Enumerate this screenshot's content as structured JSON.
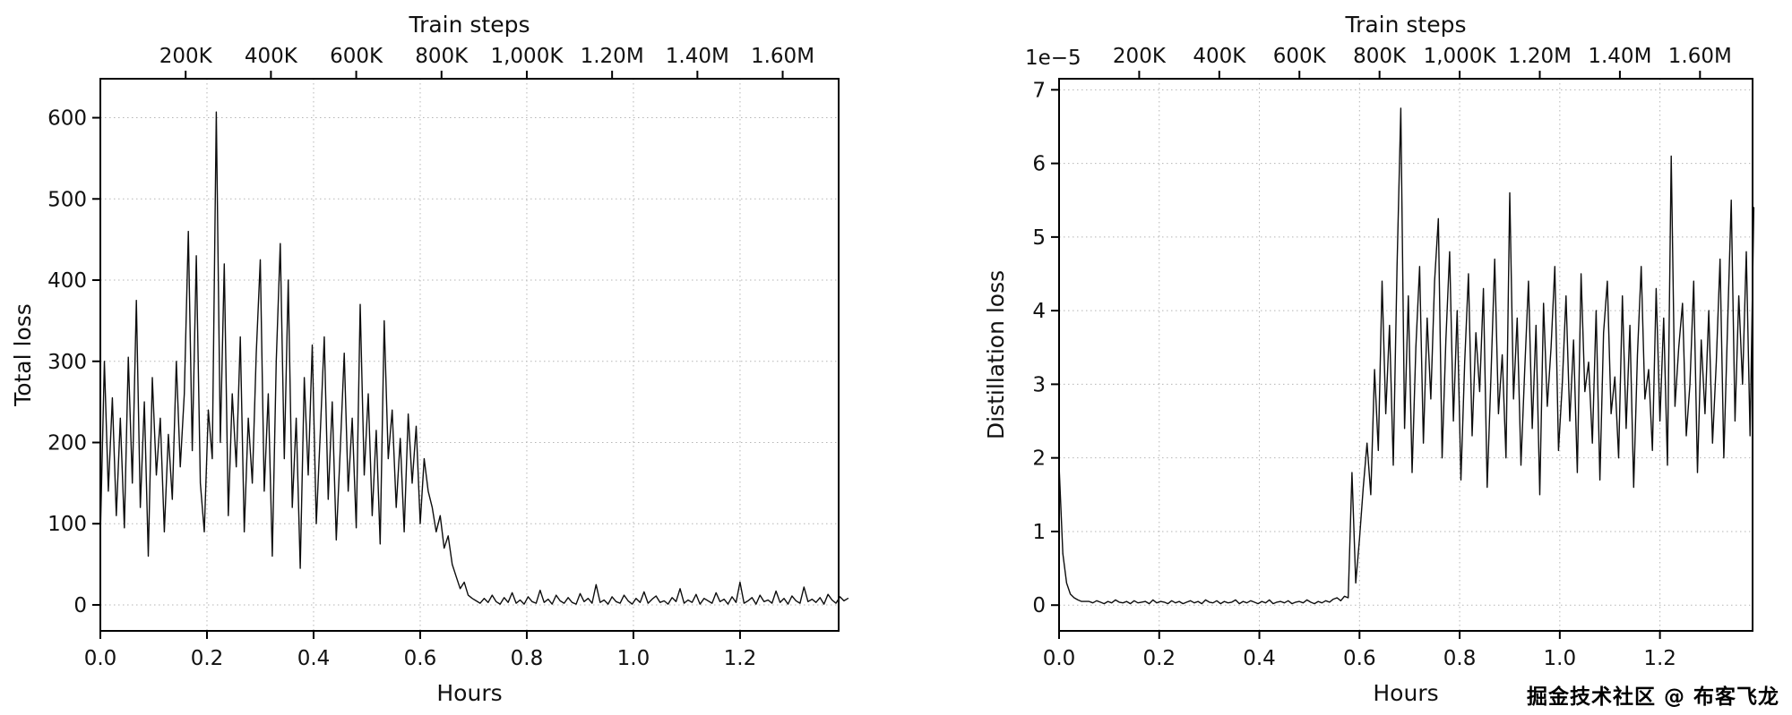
{
  "watermark": {
    "text": "掘金技术社区 @ 布客飞龙"
  },
  "chart_data": [
    {
      "type": "line",
      "title": "",
      "xlabel": "Hours",
      "ylabel": "Total loss",
      "grid": true,
      "legend": "none",
      "line_color": "#0d0d0d",
      "xlim": [
        0.0,
        1.385
      ],
      "ylim": [
        -32,
        648
      ],
      "xticks": [
        0.0,
        0.2,
        0.4,
        0.6,
        0.8,
        1.0,
        1.2
      ],
      "xtick_labels": [
        "0.0",
        "0.2",
        "0.4",
        "0.6",
        "0.8",
        "1.0",
        "1.2"
      ],
      "yticks": [
        0,
        100,
        200,
        300,
        400,
        500,
        600
      ],
      "ytick_labels": [
        "0",
        "100",
        "200",
        "300",
        "400",
        "500",
        "600"
      ],
      "top_axis": {
        "label": "Train steps",
        "steps_per_hour": 1250000,
        "tick_values_steps": [
          200000,
          400000,
          600000,
          800000,
          1000000,
          1200000,
          1400000,
          1600000
        ],
        "tick_labels": [
          "200K",
          "400K",
          "600K",
          "800K",
          "1,000K",
          "1.20M",
          "1.40M",
          "1.60M"
        ]
      },
      "series": [
        {
          "name": "total_loss",
          "x_start": 0.0,
          "x_step": 0.0075,
          "values": [
            85,
            300,
            140,
            255,
            110,
            230,
            95,
            305,
            150,
            375,
            120,
            250,
            60,
            280,
            160,
            230,
            90,
            210,
            130,
            300,
            170,
            260,
            460,
            190,
            430,
            150,
            90,
            240,
            180,
            607,
            200,
            420,
            110,
            260,
            170,
            330,
            90,
            230,
            150,
            310,
            425,
            140,
            260,
            60,
            300,
            445,
            180,
            400,
            120,
            230,
            45,
            280,
            160,
            320,
            100,
            210,
            330,
            130,
            250,
            80,
            190,
            310,
            140,
            230,
            95,
            370,
            160,
            260,
            110,
            215,
            75,
            350,
            180,
            240,
            120,
            205,
            90,
            235,
            150,
            220,
            100,
            180,
            140,
            120,
            90,
            110,
            70,
            85,
            50,
            35,
            20,
            28,
            12,
            8,
            5,
            2,
            8,
            3,
            12,
            4,
            1,
            9,
            3,
            15,
            2,
            6,
            1,
            10,
            4,
            2,
            18,
            3,
            7,
            1,
            12,
            5,
            2,
            9,
            3,
            1,
            14,
            4,
            8,
            2,
            25,
            3,
            6,
            1,
            10,
            4,
            2,
            12,
            5,
            1,
            8,
            3,
            16,
            2,
            7,
            11,
            3,
            5,
            1,
            9,
            4,
            20,
            2,
            6,
            3,
            13,
            1,
            8,
            5,
            2,
            15,
            4,
            7,
            1,
            10,
            3,
            28,
            2,
            5,
            9,
            1,
            12,
            4,
            6,
            2,
            17,
            3,
            8,
            1,
            11,
            5,
            2,
            22,
            4,
            7,
            3,
            9,
            1,
            13,
            6,
            2,
            10,
            5,
            8
          ]
        }
      ]
    },
    {
      "type": "line",
      "title": "",
      "xlabel": "Hours",
      "ylabel": "Distillation loss",
      "y_offset_text": "1e−5",
      "y_unit_multiplier": 1e-05,
      "grid": true,
      "legend": "none",
      "line_color": "#0d0d0d",
      "xlim": [
        0.0,
        1.385
      ],
      "ylim": [
        -0.35,
        7.15
      ],
      "xticks": [
        0.0,
        0.2,
        0.4,
        0.6,
        0.8,
        1.0,
        1.2
      ],
      "xtick_labels": [
        "0.0",
        "0.2",
        "0.4",
        "0.6",
        "0.8",
        "1.0",
        "1.2"
      ],
      "yticks": [
        0,
        1,
        2,
        3,
        4,
        5,
        6,
        7
      ],
      "ytick_labels": [
        "0",
        "1",
        "2",
        "3",
        "4",
        "5",
        "6",
        "7"
      ],
      "top_axis": {
        "label": "Train steps",
        "steps_per_hour": 1250000,
        "tick_values_steps": [
          200000,
          400000,
          600000,
          800000,
          1000000,
          1200000,
          1400000,
          1600000
        ],
        "tick_labels": [
          "200K",
          "400K",
          "600K",
          "800K",
          "1,000K",
          "1.20M",
          "1.40M",
          "1.60M"
        ]
      },
      "series": [
        {
          "name": "distillation_loss",
          "x_start": 0.0,
          "x_step": 0.0075,
          "values": [
            1.9,
            0.7,
            0.3,
            0.15,
            0.1,
            0.07,
            0.05,
            0.05,
            0.05,
            0.03,
            0.06,
            0.04,
            0.02,
            0.05,
            0.03,
            0.07,
            0.04,
            0.03,
            0.05,
            0.02,
            0.06,
            0.03,
            0.04,
            0.05,
            0.02,
            0.07,
            0.03,
            0.05,
            0.04,
            0.02,
            0.06,
            0.03,
            0.05,
            0.02,
            0.04,
            0.06,
            0.03,
            0.05,
            0.02,
            0.07,
            0.04,
            0.03,
            0.06,
            0.02,
            0.05,
            0.03,
            0.04,
            0.07,
            0.02,
            0.05,
            0.03,
            0.06,
            0.04,
            0.02,
            0.05,
            0.03,
            0.07,
            0.02,
            0.04,
            0.05,
            0.03,
            0.06,
            0.02,
            0.04,
            0.05,
            0.03,
            0.07,
            0.04,
            0.02,
            0.05,
            0.03,
            0.06,
            0.04,
            0.08,
            0.1,
            0.06,
            0.12,
            0.1,
            1.8,
            0.3,
            0.9,
            1.6,
            2.2,
            1.5,
            3.2,
            2.1,
            4.4,
            2.6,
            3.8,
            1.9,
            4.6,
            6.75,
            2.4,
            4.2,
            1.8,
            3.5,
            4.6,
            2.2,
            3.9,
            2.8,
            4.4,
            5.25,
            2.0,
            3.6,
            4.8,
            2.5,
            4.0,
            1.7,
            3.3,
            4.5,
            2.3,
            3.7,
            2.9,
            4.3,
            1.6,
            3.1,
            4.7,
            2.6,
            3.4,
            2.0,
            5.6,
            2.8,
            3.9,
            1.9,
            3.2,
            4.4,
            2.4,
            3.8,
            1.5,
            4.1,
            2.7,
            3.5,
            4.6,
            2.1,
            3.0,
            4.2,
            2.5,
            3.6,
            1.8,
            4.5,
            2.9,
            3.3,
            2.2,
            4.0,
            1.7,
            3.7,
            4.4,
            2.6,
            3.1,
            2.0,
            4.2,
            2.4,
            3.8,
            1.6,
            3.4,
            4.6,
            2.8,
            3.2,
            2.1,
            4.3,
            2.5,
            3.9,
            1.9,
            6.1,
            2.7,
            3.5,
            4.1,
            2.3,
            3.0,
            4.4,
            1.8,
            3.6,
            2.6,
            4.0,
            2.2,
            3.3,
            4.7,
            2.0,
            3.8,
            5.5,
            2.5,
            4.2,
            3.0,
            4.8,
            2.3,
            5.4
          ]
        }
      ]
    }
  ]
}
